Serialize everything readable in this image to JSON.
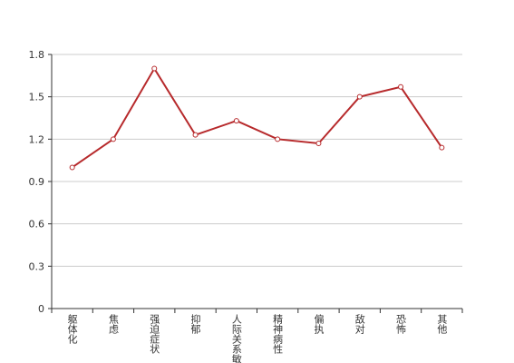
{
  "chart_data": {
    "type": "line",
    "categories": [
      "躯体化",
      "焦虑",
      "强迫症状",
      "抑郁",
      "人际关系敏感",
      "精神病性",
      "偏执",
      "敌对",
      "恐怖",
      "其他"
    ],
    "values": [
      1.0,
      1.2,
      1.7,
      1.23,
      1.33,
      1.2,
      1.17,
      1.5,
      1.57,
      1.14
    ],
    "color": "#b72a2c",
    "ylim": [
      0,
      1.8
    ],
    "yticks": [
      0,
      0.3,
      0.6,
      0.9,
      1.2,
      1.5,
      1.8
    ],
    "grid": true
  }
}
